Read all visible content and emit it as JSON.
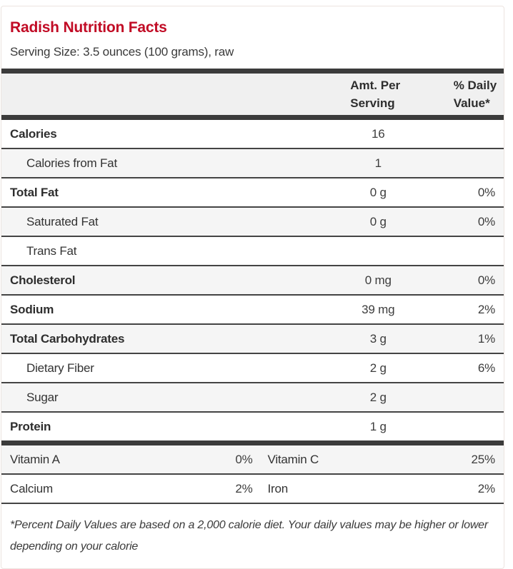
{
  "page": {
    "title": "Radish Nutrition Facts",
    "serving_size": "Serving Size: 3.5 ounces (100 grams), raw",
    "footnote": "*Percent Daily Values are based on a 2,000 calorie diet. Your daily values may be higher or lower depending on your calorie"
  },
  "colors": {
    "accent_red": "#c10b25",
    "divider_dark": "#3b3b3b",
    "row_alt_gray": "#f5f5f5",
    "header_bg": "#f0f0f0"
  },
  "table": {
    "headers": {
      "amount": "Amt. Per Serving",
      "daily_value": "% Daily Value*"
    },
    "rows": [
      {
        "label": "Calories",
        "amount": "16",
        "dv": "",
        "bold": true,
        "indent": false
      },
      {
        "label": "Calories from Fat",
        "amount": "1",
        "dv": "",
        "bold": false,
        "indent": true
      },
      {
        "label": "Total Fat",
        "amount": "0 g",
        "dv": "0%",
        "bold": true,
        "indent": false
      },
      {
        "label": "Saturated Fat",
        "amount": "0 g",
        "dv": "0%",
        "bold": false,
        "indent": true
      },
      {
        "label": "Trans Fat",
        "amount": "",
        "dv": "",
        "bold": false,
        "indent": true
      },
      {
        "label": "Cholesterol",
        "amount": "0 mg",
        "dv": "0%",
        "bold": true,
        "indent": false
      },
      {
        "label": "Sodium",
        "amount": "39 mg",
        "dv": "2%",
        "bold": true,
        "indent": false
      },
      {
        "label": "Total Carbohydrates",
        "amount": "3 g",
        "dv": "1%",
        "bold": true,
        "indent": false
      },
      {
        "label": "Dietary Fiber",
        "amount": "2 g",
        "dv": "6%",
        "bold": false,
        "indent": true
      },
      {
        "label": "Sugar",
        "amount": "2 g",
        "dv": "",
        "bold": false,
        "indent": true
      },
      {
        "label": "Protein",
        "amount": "1 g",
        "dv": "",
        "bold": true,
        "indent": false
      }
    ],
    "vitamins": [
      {
        "label1": "Vitamin A",
        "value1": "0%",
        "label2": "Vitamin C",
        "value2": "25%"
      },
      {
        "label1": "Calcium",
        "value1": "2%",
        "label2": "Iron",
        "value2": "2%"
      }
    ]
  }
}
